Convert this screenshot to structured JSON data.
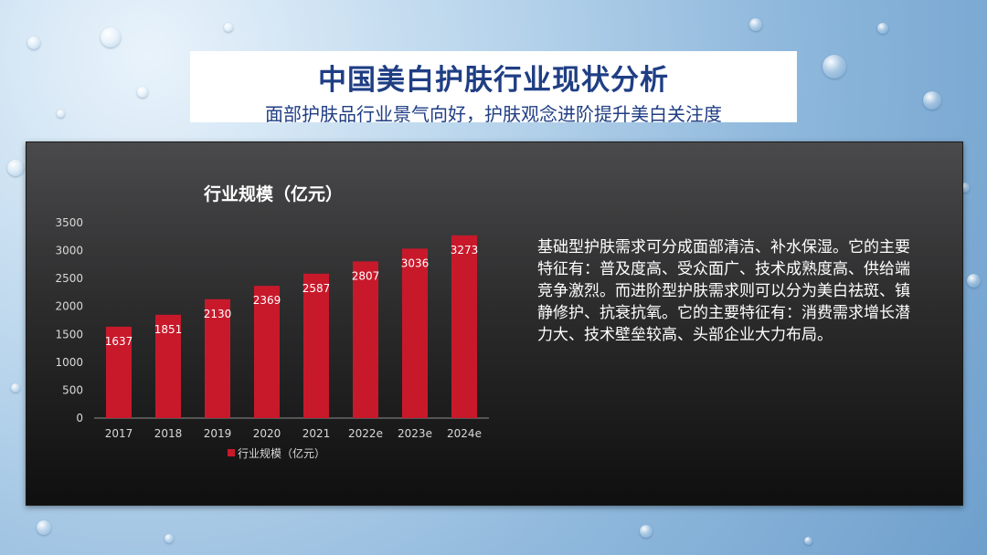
{
  "header": {
    "title": "中国美白护肤行业现状分析",
    "subtitle": "面部护肤品行业景气向好，护肤观念进阶提升美白关注度"
  },
  "description": "基础型护肤需求可分成面部清洁、补水保湿。它的主要特征有：普及度高、受众面广、技术成熟度高、供给端竞争激烈。而进阶型护肤需求则可以分为美白祛斑、镇静修护、抗衰抗氧。它的主要特征有：消费需求增长潜力大、技术壁垒较高、头部企业大力布局。",
  "colors": {
    "bar": "#c8192b",
    "title": "#1f3e84"
  },
  "chart_data": {
    "type": "bar",
    "title": "行业规模（亿元）",
    "categories": [
      "2017",
      "2018",
      "2019",
      "2020",
      "2021",
      "2022e",
      "2023e",
      "2024e"
    ],
    "series": [
      {
        "name": "行业规模（亿元）",
        "values": [
          1637,
          1851,
          2130,
          2369,
          2587,
          2807,
          3036,
          3273
        ]
      }
    ],
    "ylim": [
      0,
      3500
    ],
    "yticks": [
      0,
      500,
      1000,
      1500,
      2000,
      2500,
      3000,
      3500
    ],
    "legend": "bottom",
    "grid": false
  }
}
